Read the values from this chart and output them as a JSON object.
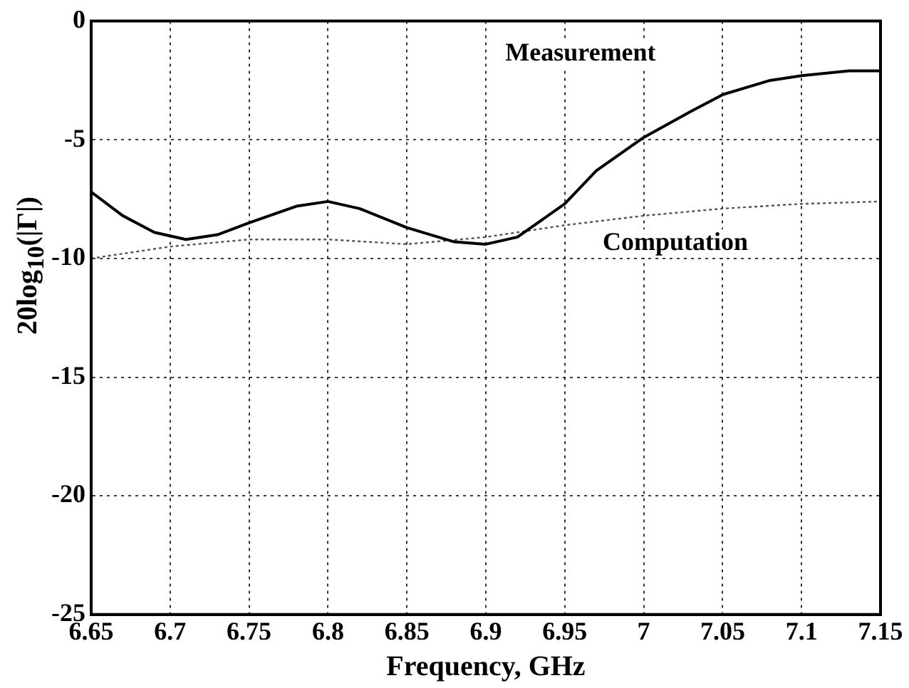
{
  "chart_data": {
    "type": "line",
    "xlabel": "Frequency, GHz",
    "ylabel": "20log$_{10}$(|Γ|)",
    "xlim": [
      6.65,
      7.15
    ],
    "xticks": [
      6.65,
      6.7,
      6.75,
      6.8,
      6.85,
      6.9,
      6.95,
      7,
      7.05,
      7.1,
      7.15
    ],
    "ylim": [
      -25,
      0
    ],
    "yticks": [
      -25,
      -20,
      -15,
      -10,
      -5,
      0
    ],
    "grid": true,
    "legend": false,
    "marker": "none",
    "series": [
      {
        "name": "Measurement",
        "color": "#000000",
        "line_style": "solid",
        "x": [
          6.65,
          6.67,
          6.69,
          6.71,
          6.73,
          6.75,
          6.78,
          6.8,
          6.82,
          6.85,
          6.88,
          6.9,
          6.92,
          6.95,
          6.97,
          7,
          7.03,
          7.05,
          7.08,
          7.1,
          7.13,
          7.15
        ],
        "values": [
          -7.2,
          -8.2,
          -8.9,
          -9.2,
          -9,
          -8.5,
          -7.8,
          -7.6,
          -7.9,
          -8.7,
          -9.3,
          -9.4,
          -9.1,
          -7.7,
          -6.3,
          -4.9,
          -3.8,
          -3.1,
          -2.5,
          -2.3,
          -2.1,
          -2.1
        ]
      },
      {
        "name": "Computation",
        "color": "#555555",
        "line_style": "dotted",
        "x": [
          6.65,
          6.7,
          6.75,
          6.8,
          6.85,
          6.9,
          6.95,
          7,
          7.05,
          7.1,
          7.15
        ],
        "values": [
          -10,
          -9.5,
          -9.2,
          -9.2,
          -9.4,
          -9.1,
          -8.6,
          -8.2,
          -7.9,
          -7.7,
          -7.6
        ]
      }
    ]
  }
}
